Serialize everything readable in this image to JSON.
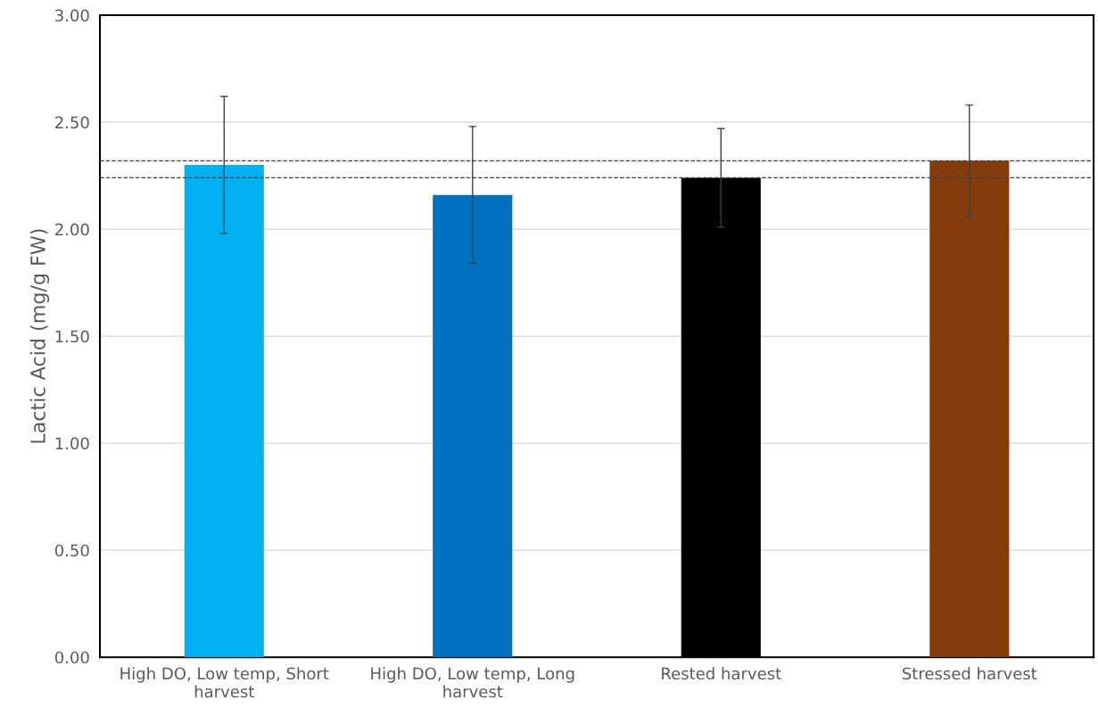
{
  "chart_data": {
    "type": "bar",
    "ylabel": "Lactic Acid (mg/g FW)",
    "categories": [
      "High DO, Low temp, Short harvest",
      "High DO, Low temp, Long harvest",
      "Rested harvest",
      "Stressed harvest"
    ],
    "values": [
      2.3,
      2.16,
      2.24,
      2.32
    ],
    "errors": [
      0.32,
      0.32,
      0.23,
      0.26
    ],
    "colors": [
      "#00b0f0",
      "#0070c0",
      "#000000",
      "#843c0c"
    ],
    "ylim": [
      0,
      3
    ],
    "yticks": [
      {
        "value": 0,
        "label": "0.00"
      },
      {
        "value": 0.5,
        "label": "0.50"
      },
      {
        "value": 1,
        "label": "1.00"
      },
      {
        "value": 1.5,
        "label": "1.50"
      },
      {
        "value": 2,
        "label": "2.00"
      },
      {
        "value": 2.5,
        "label": "2.50"
      },
      {
        "value": 3,
        "label": "3.00"
      }
    ],
    "ref_lines": [
      {
        "axis": "y",
        "value": 2.32,
        "color": "#404040",
        "line_style": "dashed"
      },
      {
        "axis": "y",
        "value": 2.24,
        "color": "#404040",
        "line_style": "dashed"
      }
    ],
    "grid": "y",
    "legend": false
  }
}
